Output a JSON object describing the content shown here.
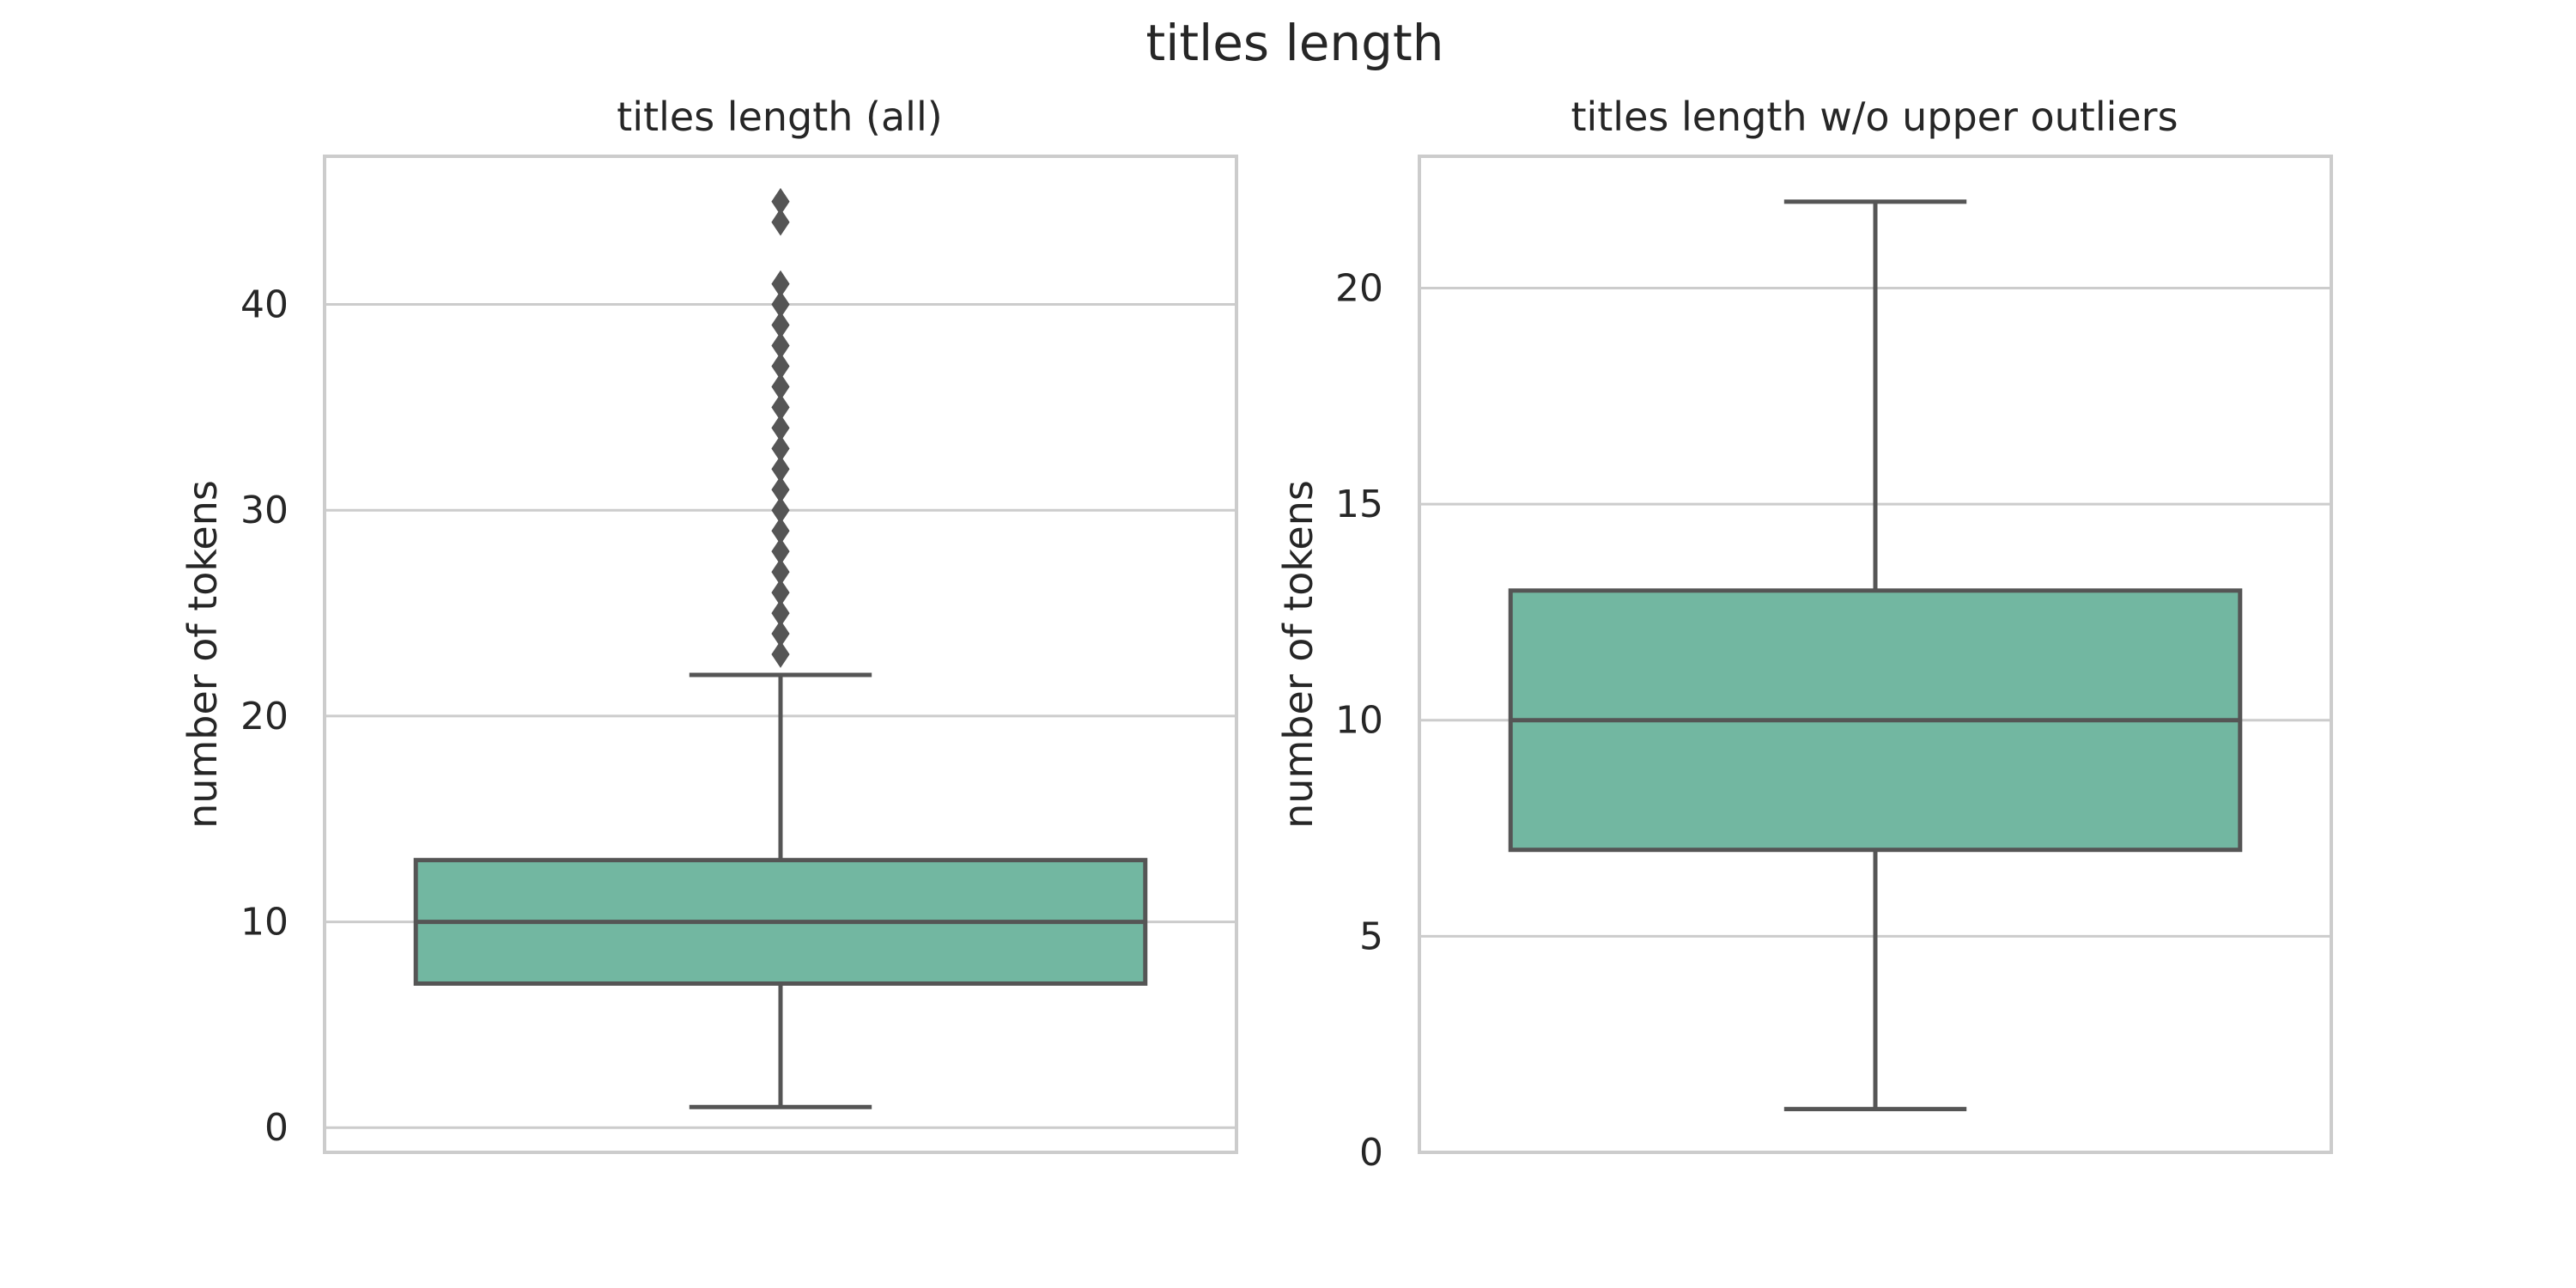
{
  "figure": {
    "title": "titles length"
  },
  "colors": {
    "box_fill": "#72b7a1",
    "line": "#555555",
    "grid": "#cccccc",
    "frame": "#cccccc",
    "text": "#262626"
  },
  "chart_data": [
    {
      "type": "box",
      "title": "titles length (all)",
      "xlabel": "",
      "ylabel": "number of tokens",
      "ylim": [
        -1.2,
        47.2
      ],
      "yticks": [
        0,
        10,
        20,
        30,
        40
      ],
      "grid": true,
      "box": {
        "whisker_low": 1,
        "q1": 7,
        "median": 10,
        "q3": 13,
        "whisker_high": 22
      },
      "outliers": [
        23,
        24,
        25,
        26,
        27,
        28,
        29,
        30,
        31,
        32,
        33,
        34,
        35,
        36,
        37,
        38,
        39,
        40,
        41,
        44,
        45
      ]
    },
    {
      "type": "box",
      "title": "titles length w/o upper outliers",
      "xlabel": "",
      "ylabel": "number of tokens",
      "ylim": [
        0,
        23.05
      ],
      "yticks": [
        0,
        5,
        10,
        15,
        20
      ],
      "grid": true,
      "box": {
        "whisker_low": 1,
        "q1": 7,
        "median": 10,
        "q3": 13,
        "whisker_high": 22
      },
      "outliers": []
    }
  ]
}
